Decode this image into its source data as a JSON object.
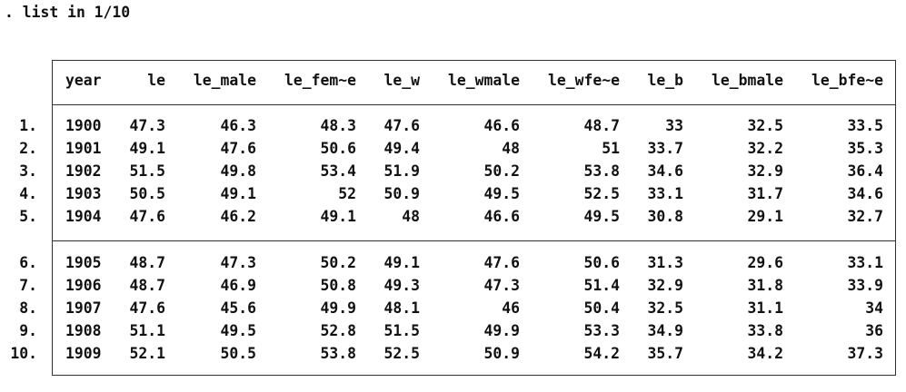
{
  "command": ". list in 1/10",
  "table": {
    "columns": [
      "year",
      "le",
      "le_male",
      "le_fem~e",
      "le_w",
      "le_wmale",
      "le_wfe~e",
      "le_b",
      "le_bmale",
      "le_bfe~e"
    ],
    "groups": [
      [
        {
          "row_number": "1.",
          "cells": [
            "1900",
            "47.3",
            "46.3",
            "48.3",
            "47.6",
            "46.6",
            "48.7",
            "33",
            "32.5",
            "33.5"
          ]
        },
        {
          "row_number": "2.",
          "cells": [
            "1901",
            "49.1",
            "47.6",
            "50.6",
            "49.4",
            "48",
            "51",
            "33.7",
            "32.2",
            "35.3"
          ]
        },
        {
          "row_number": "3.",
          "cells": [
            "1902",
            "51.5",
            "49.8",
            "53.4",
            "51.9",
            "50.2",
            "53.8",
            "34.6",
            "32.9",
            "36.4"
          ]
        },
        {
          "row_number": "4.",
          "cells": [
            "1903",
            "50.5",
            "49.1",
            "52",
            "50.9",
            "49.5",
            "52.5",
            "33.1",
            "31.7",
            "34.6"
          ]
        },
        {
          "row_number": "5.",
          "cells": [
            "1904",
            "47.6",
            "46.2",
            "49.1",
            "48",
            "46.6",
            "49.5",
            "30.8",
            "29.1",
            "32.7"
          ]
        }
      ],
      [
        {
          "row_number": "6.",
          "cells": [
            "1905",
            "48.7",
            "47.3",
            "50.2",
            "49.1",
            "47.6",
            "50.6",
            "31.3",
            "29.6",
            "33.1"
          ]
        },
        {
          "row_number": "7.",
          "cells": [
            "1906",
            "48.7",
            "46.9",
            "50.8",
            "49.3",
            "47.3",
            "51.4",
            "32.9",
            "31.8",
            "33.9"
          ]
        },
        {
          "row_number": "8.",
          "cells": [
            "1907",
            "47.6",
            "45.6",
            "49.9",
            "48.1",
            "46",
            "50.4",
            "32.5",
            "31.1",
            "34"
          ]
        },
        {
          "row_number": "9.",
          "cells": [
            "1908",
            "51.1",
            "49.5",
            "52.8",
            "51.5",
            "49.9",
            "53.3",
            "34.9",
            "33.8",
            "36"
          ]
        },
        {
          "row_number": "10.",
          "cells": [
            "1909",
            "52.1",
            "50.5",
            "53.8",
            "52.5",
            "50.9",
            "54.2",
            "35.7",
            "34.2",
            "37.3"
          ]
        }
      ]
    ]
  }
}
